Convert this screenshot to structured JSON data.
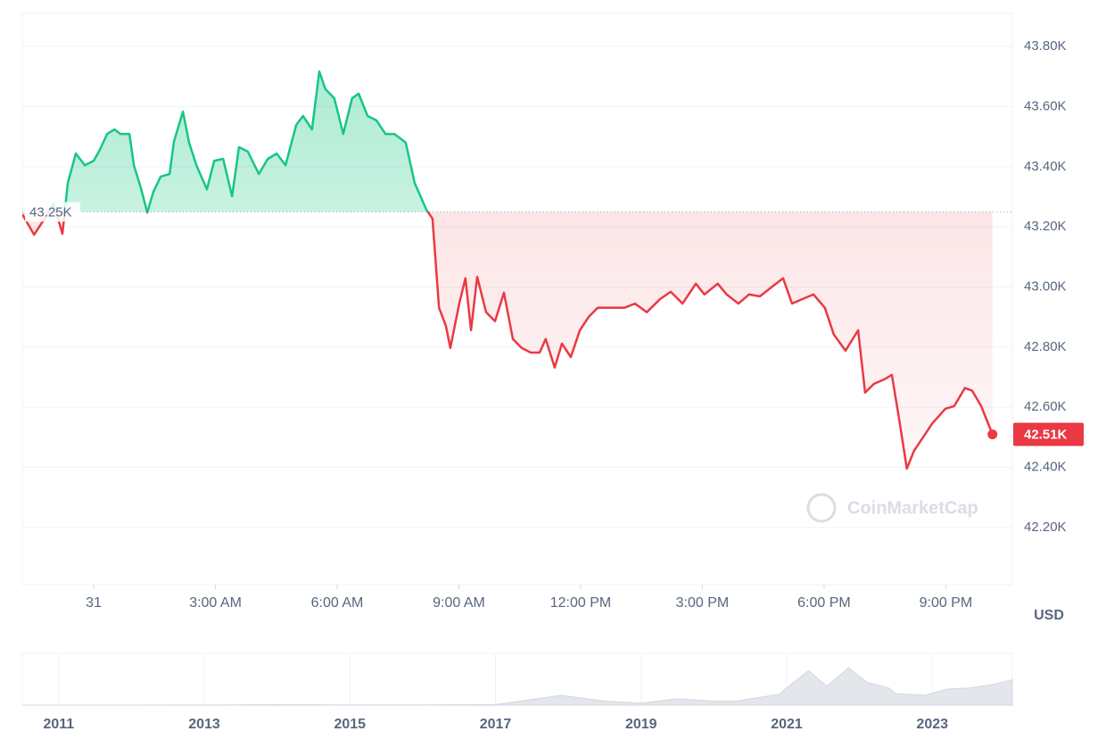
{
  "chart_data": [
    {
      "type": "line",
      "x": [
        -1.76,
        -1.47,
        -1.21,
        -0.99,
        -0.77,
        -0.64,
        -0.44,
        -0.22,
        0,
        0.15,
        0.33,
        0.51,
        0.66,
        0.88,
        0.99,
        1.16,
        1.32,
        1.47,
        1.65,
        1.87,
        1.98,
        2.2,
        2.35,
        2.53,
        2.79,
        2.97,
        3.19,
        3.41,
        3.58,
        3.8,
        4.07,
        4.29,
        4.51,
        4.73,
        4.99,
        5.16,
        5.38,
        5.56,
        5.71,
        5.93,
        6.15,
        6.37,
        6.53,
        6.75,
        6.97,
        7.19,
        7.41,
        7.69,
        7.91,
        8.2,
        8.35,
        8.51,
        8.68,
        8.79,
        9.01,
        9.16,
        9.3,
        9.45,
        9.67,
        9.89,
        10.11,
        10.33,
        10.55,
        10.77,
        10.99,
        11.14,
        11.36,
        11.54,
        11.76,
        11.98,
        12.2,
        12.42,
        12.75,
        13.08,
        13.34,
        13.63,
        13.96,
        14.22,
        14.51,
        14.84,
        15.05,
        15.38,
        15.6,
        15.89,
        16.15,
        16.42,
        16.7,
        16.99,
        17.21,
        17.47,
        17.74,
        18.02,
        18.24,
        18.53,
        18.84,
        19.01,
        19.23,
        19.49,
        19.67,
        19.85,
        20.04,
        20.22,
        20.44,
        20.66,
        20.99,
        21.21,
        21.47,
        21.65,
        21.87,
        22.15
      ],
      "values": [
        43242,
        43174,
        43227,
        43278,
        43177,
        43346,
        43444,
        43405,
        43420,
        43456,
        43509,
        43524,
        43509,
        43509,
        43405,
        43331,
        43248,
        43316,
        43367,
        43376,
        43485,
        43583,
        43480,
        43405,
        43325,
        43420,
        43426,
        43302,
        43465,
        43450,
        43376,
        43426,
        43444,
        43405,
        43539,
        43569,
        43524,
        43717,
        43658,
        43628,
        43509,
        43628,
        43643,
        43569,
        43554,
        43509,
        43509,
        43480,
        43346,
        43257,
        43227,
        42931,
        42871,
        42797,
        42945,
        43029,
        42856,
        43034,
        42916,
        42886,
        42981,
        42827,
        42797,
        42782,
        42782,
        42827,
        42732,
        42812,
        42767,
        42856,
        42901,
        42931,
        42931,
        42931,
        42945,
        42916,
        42960,
        42984,
        42945,
        43011,
        42975,
        43011,
        42975,
        42945,
        42975,
        42969,
        42999,
        43029,
        42945,
        42960,
        42975,
        42931,
        42842,
        42788,
        42856,
        42649,
        42678,
        42693,
        42708,
        42560,
        42396,
        42456,
        42500,
        42545,
        42595,
        42604,
        42664,
        42655,
        42604,
        42510
      ],
      "colors": {
        "up": "#16c784",
        "down": "#ea3943"
      },
      "baseline": {
        "value": 43250,
        "label": "43.25K"
      },
      "current": {
        "value": 42510,
        "label": "42.51K"
      },
      "xlim": [
        -1.76,
        22.64
      ],
      "xticks": [
        {
          "value": 0,
          "label": "31"
        },
        {
          "value": 3,
          "label": "3:00 AM"
        },
        {
          "value": 6,
          "label": "6:00 AM"
        },
        {
          "value": 9,
          "label": "9:00 AM"
        },
        {
          "value": 12,
          "label": "12:00 PM"
        },
        {
          "value": 15,
          "label": "3:00 PM"
        },
        {
          "value": 18,
          "label": "6:00 PM"
        },
        {
          "value": 21,
          "label": "9:00 PM"
        }
      ],
      "ylim": [
        42010,
        43910
      ],
      "yticks": [
        {
          "value": 42200,
          "label": "42.20K"
        },
        {
          "value": 42400,
          "label": "42.40K"
        },
        {
          "value": 42600,
          "label": "42.60K"
        },
        {
          "value": 42800,
          "label": "42.80K"
        },
        {
          "value": 43000,
          "label": "43.00K"
        },
        {
          "value": 43200,
          "label": "43.20K"
        },
        {
          "value": 43400,
          "label": "43.40K"
        },
        {
          "value": 43600,
          "label": "43.60K"
        },
        {
          "value": 43800,
          "label": "43.80K"
        }
      ],
      "y_axis_label": "USD",
      "watermark": "CoinMarketCap",
      "grid": true
    },
    {
      "type": "area",
      "x": [
        2010.5,
        2013,
        2014,
        2015,
        2016,
        2017,
        2017.9,
        2018.5,
        2019,
        2019.5,
        2020,
        2020.3,
        2020.9,
        2021.1,
        2021.3,
        2021.55,
        2021.85,
        2022.1,
        2022.4,
        2022.5,
        2022.9,
        2023.2,
        2023.5,
        2023.8,
        2024.1
      ],
      "values": [
        0,
        100,
        800,
        300,
        400,
        1000,
        17000,
        7000,
        3500,
        11000,
        7000,
        7000,
        19000,
        40000,
        60000,
        33000,
        65000,
        40000,
        30000,
        20000,
        17000,
        28000,
        30000,
        35000,
        44000
      ],
      "color": "#e3e6eb",
      "xlim": [
        2010.5,
        2024.1
      ],
      "xticks": [
        2011,
        2013,
        2015,
        2017,
        2019,
        2021,
        2023
      ],
      "ylim": [
        0,
        90000
      ]
    }
  ]
}
